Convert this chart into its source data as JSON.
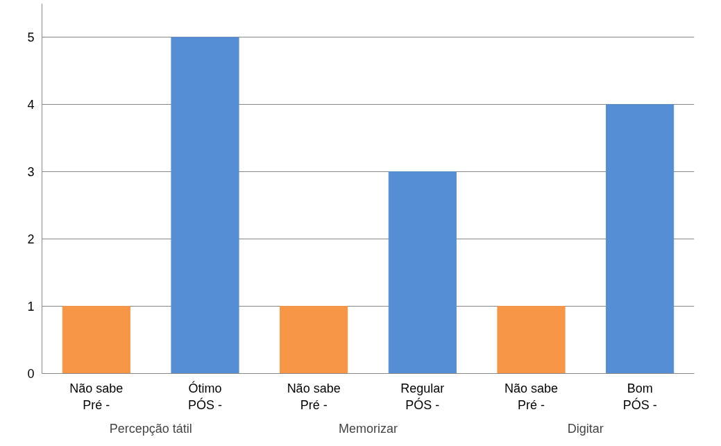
{
  "chart_data": {
    "type": "bar",
    "categories": [
      "Não sabe\nPré -",
      "Ótimo\nPÓS -",
      "Não sabe\nPré -",
      "Regular\nPÓS -",
      "Não sabe\nPré -",
      "Bom\nPÓS -"
    ],
    "values": [
      1,
      5,
      1,
      3,
      1,
      4
    ],
    "colors": [
      "#f79646",
      "#558ed5",
      "#f79646",
      "#558ed5",
      "#f79646",
      "#558ed5"
    ],
    "annotations": [
      "Percepção tátil",
      "Memorizar",
      "Digitar"
    ],
    "ylim": [
      0,
      5.5
    ],
    "yticks": [
      0,
      1,
      2,
      3,
      4,
      5
    ],
    "grid": "y"
  }
}
